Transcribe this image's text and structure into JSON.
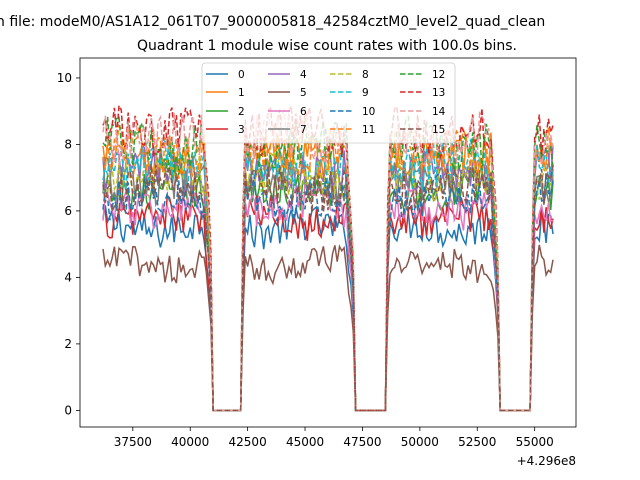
{
  "figure": {
    "suptitle": "n file: modeM0/AS1A12_061T07_9000005818_42584cztM0_level2_quad_clean",
    "offset_label": "+4.296e8"
  },
  "chart_data": {
    "type": "line",
    "title": "Quadrant 1 module wise count rates with 100.0s bins.",
    "xlabel": "",
    "ylabel": "",
    "xlim": [
      35200,
      56800
    ],
    "ylim": [
      -0.5,
      10.6
    ],
    "x_offset": 429600000,
    "xticks": [
      37500,
      40000,
      42500,
      45000,
      47500,
      50000,
      52500,
      55000
    ],
    "xtick_labels": [
      "37500",
      "40000",
      "42500",
      "45000",
      "47500",
      "50000",
      "52500",
      "55000"
    ],
    "yticks": [
      0,
      2,
      4,
      6,
      8,
      10
    ],
    "ytick_labels": [
      "0",
      "2",
      "4",
      "6",
      "8",
      "10"
    ],
    "legend_position": "upper center",
    "legend_columns": 4,
    "x_start": 36200,
    "x_end": 55800,
    "bin_seconds": 100,
    "gaps": [
      [
        41000,
        42200
      ],
      [
        47200,
        48500
      ],
      [
        53500,
        54800
      ]
    ],
    "gap_value": 0,
    "series": [
      {
        "name": "0",
        "color": "#1f77b4",
        "dash": "solid",
        "level": 5.5
      },
      {
        "name": "1",
        "color": "#ff7f0e",
        "dash": "solid",
        "level": 7.6
      },
      {
        "name": "2",
        "color": "#2ca02c",
        "dash": "solid",
        "level": 6.6
      },
      {
        "name": "3",
        "color": "#d62728",
        "dash": "solid",
        "level": 5.8
      },
      {
        "name": "4",
        "color": "#9467bd",
        "dash": "solid",
        "level": 7.2
      },
      {
        "name": "5",
        "color": "#8c564b",
        "dash": "solid",
        "level": 4.4
      },
      {
        "name": "6",
        "color": "#e377c2",
        "dash": "solid",
        "level": 6.1
      },
      {
        "name": "7",
        "color": "#7f7f7f",
        "dash": "solid",
        "level": 6.9
      },
      {
        "name": "8",
        "color": "#bcbd22",
        "dash": "dashed",
        "level": 7.0
      },
      {
        "name": "9",
        "color": "#17becf",
        "dash": "dashed",
        "level": 7.4
      },
      {
        "name": "10",
        "color": "#1f77b4",
        "dash": "dashed",
        "level": 6.4
      },
      {
        "name": "11",
        "color": "#ff7f0e",
        "dash": "dashed",
        "level": 7.8
      },
      {
        "name": "12",
        "color": "#2ca02c",
        "dash": "dashed",
        "level": 8.0
      },
      {
        "name": "13",
        "color": "#d62728",
        "dash": "dashed",
        "level": 8.4
      },
      {
        "name": "14",
        "color": "#e99a9a",
        "dash": "dashed",
        "level": 8.2
      },
      {
        "name": "15",
        "color": "#8c564b",
        "dash": "dashed",
        "level": 6.7
      }
    ]
  }
}
